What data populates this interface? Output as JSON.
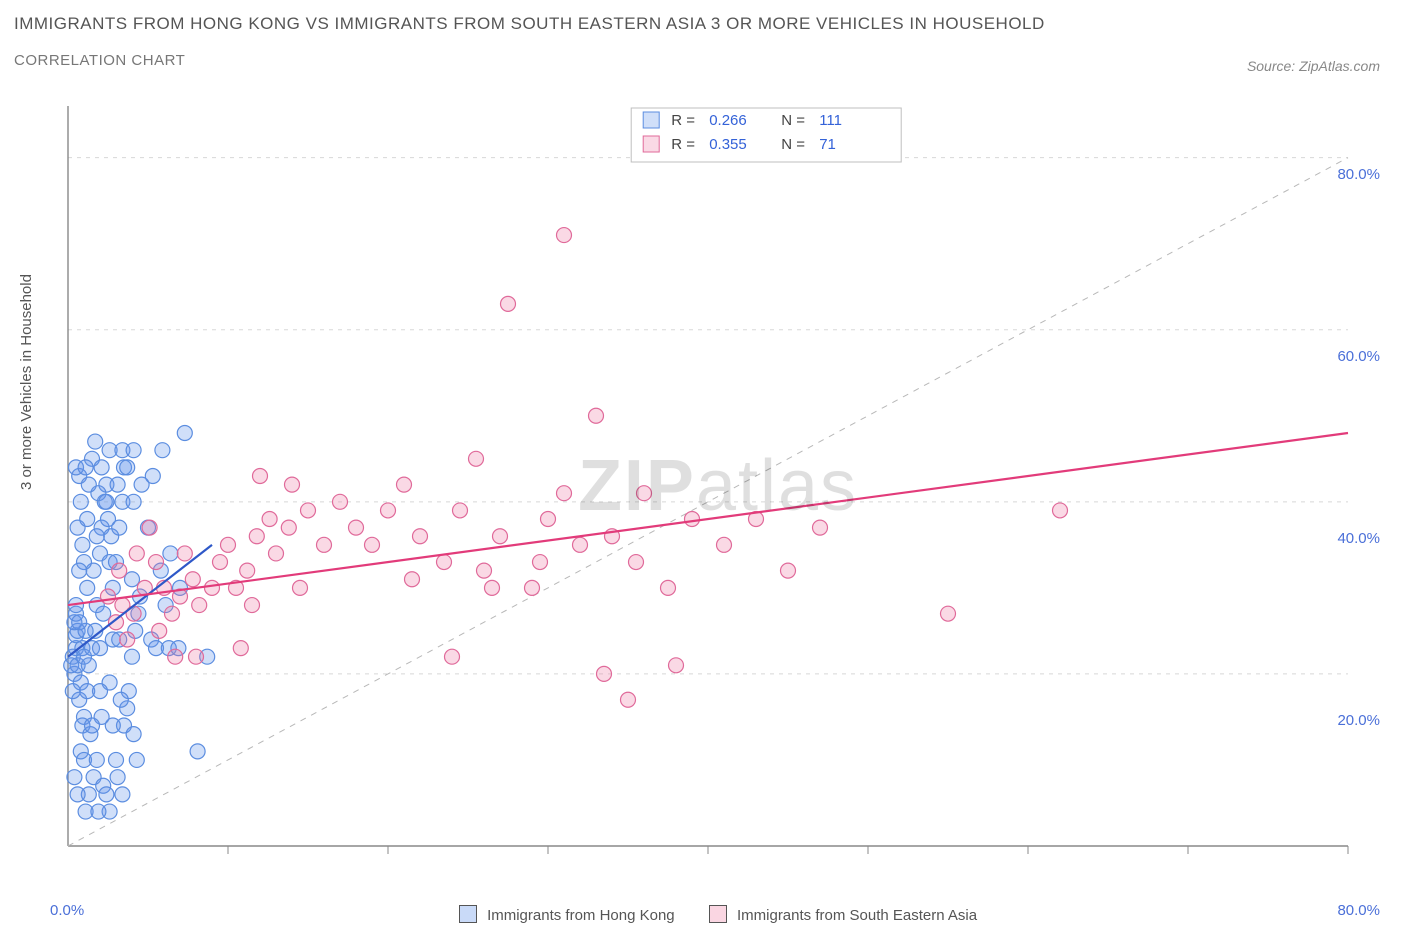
{
  "title": "IMMIGRANTS FROM HONG KONG VS IMMIGRANTS FROM SOUTH EASTERN ASIA 3 OR MORE VEHICLES IN HOUSEHOLD",
  "subtitle": "CORRELATION CHART",
  "source": "Source: ZipAtlas.com",
  "y_axis_label": "3 or more Vehicles in Household",
  "watermark_a": "ZIP",
  "watermark_b": "atlas",
  "chart": {
    "type": "scatter",
    "xlim": [
      0,
      80
    ],
    "ylim": [
      0,
      86
    ],
    "x_ticks": [
      0,
      80
    ],
    "x_tick_labels": [
      "0.0%",
      "80.0%"
    ],
    "y_ticks": [
      20,
      40,
      60,
      80
    ],
    "y_tick_labels": [
      "20.0%",
      "40.0%",
      "60.0%",
      "80.0%"
    ],
    "grid_color": "#d8d8d8",
    "axis_color": "#888888",
    "background_color": "#ffffff",
    "marker_radius": 7.5,
    "marker_stroke_width": 1.2,
    "diagonal_guide": {
      "color": "#b8b8b8",
      "dash": "6 6"
    },
    "series": [
      {
        "name": "Immigrants from Hong Kong",
        "fill": "rgba(99,148,236,0.30)",
        "stroke": "#5b8de0",
        "R": "0.266",
        "N": "111",
        "trend": {
          "x1": 0,
          "y1": 22,
          "x2": 9,
          "y2": 35,
          "color": "#2e58c8",
          "width": 2.2
        },
        "points": [
          [
            0.3,
            22
          ],
          [
            0.5,
            23
          ],
          [
            0.5,
            24.5
          ],
          [
            0.4,
            20
          ],
          [
            0.2,
            21
          ],
          [
            0.6,
            25
          ],
          [
            0.7,
            17
          ],
          [
            0.8,
            19
          ],
          [
            0.3,
            18
          ],
          [
            0.4,
            26
          ],
          [
            0.5,
            27
          ],
          [
            0.6,
            21
          ],
          [
            0.9,
            23
          ],
          [
            1.0,
            22
          ],
          [
            1.1,
            25
          ],
          [
            1.3,
            21
          ],
          [
            1.0,
            15
          ],
          [
            1.2,
            18
          ],
          [
            0.8,
            11
          ],
          [
            0.9,
            14
          ],
          [
            1.0,
            10
          ],
          [
            1.4,
            13
          ],
          [
            1.5,
            23
          ],
          [
            1.7,
            25
          ],
          [
            1.8,
            28
          ],
          [
            2.0,
            23
          ],
          [
            2.2,
            27
          ],
          [
            2.0,
            34
          ],
          [
            2.1,
            37
          ],
          [
            2.3,
            40
          ],
          [
            2.4,
            42
          ],
          [
            2.5,
            38
          ],
          [
            2.7,
            36
          ],
          [
            2.8,
            30
          ],
          [
            2.6,
            33
          ],
          [
            3.0,
            33
          ],
          [
            3.2,
            37
          ],
          [
            3.1,
            42
          ],
          [
            3.4,
            40
          ],
          [
            3.5,
            44
          ],
          [
            1.5,
            45
          ],
          [
            1.7,
            47
          ],
          [
            1.9,
            41
          ],
          [
            1.8,
            36
          ],
          [
            1.6,
            32
          ],
          [
            1.2,
            30
          ],
          [
            1.0,
            33
          ],
          [
            0.9,
            35
          ],
          [
            0.7,
            32
          ],
          [
            0.6,
            37
          ],
          [
            0.8,
            40
          ],
          [
            0.7,
            43
          ],
          [
            0.5,
            44
          ],
          [
            4.0,
            22
          ],
          [
            4.2,
            25
          ],
          [
            4.4,
            27
          ],
          [
            4.0,
            31
          ],
          [
            3.8,
            18
          ],
          [
            3.7,
            16
          ],
          [
            3.5,
            14
          ],
          [
            3.3,
            17
          ],
          [
            2.8,
            14
          ],
          [
            2.6,
            19
          ],
          [
            2.1,
            15
          ],
          [
            2.0,
            18
          ],
          [
            1.8,
            10
          ],
          [
            1.6,
            8
          ],
          [
            2.2,
            7
          ],
          [
            2.4,
            6
          ],
          [
            3.0,
            10
          ],
          [
            3.1,
            8
          ],
          [
            1.3,
            6
          ],
          [
            1.1,
            4
          ],
          [
            2.6,
            4
          ],
          [
            3.4,
            6
          ],
          [
            4.1,
            13
          ],
          [
            4.3,
            10
          ],
          [
            1.9,
            4
          ],
          [
            0.6,
            6
          ],
          [
            0.4,
            8
          ],
          [
            1.5,
            14
          ],
          [
            2.8,
            24
          ],
          [
            3.2,
            24
          ],
          [
            4.5,
            29
          ],
          [
            5.2,
            24
          ],
          [
            5.8,
            32
          ],
          [
            6.1,
            28
          ],
          [
            6.4,
            34
          ],
          [
            5.0,
            37
          ],
          [
            5.3,
            43
          ],
          [
            5.9,
            46
          ],
          [
            3.7,
            44
          ],
          [
            4.1,
            40
          ],
          [
            4.6,
            42
          ],
          [
            7.3,
            48
          ],
          [
            7.0,
            30
          ],
          [
            2.4,
            40
          ],
          [
            1.2,
            38
          ],
          [
            1.3,
            42
          ],
          [
            1.1,
            44
          ],
          [
            2.1,
            44
          ],
          [
            2.6,
            46
          ],
          [
            3.4,
            46
          ],
          [
            4.1,
            46
          ],
          [
            5.5,
            23
          ],
          [
            6.3,
            23
          ],
          [
            6.9,
            23
          ],
          [
            8.7,
            22
          ],
          [
            8.1,
            11
          ],
          [
            0.7,
            26
          ],
          [
            0.5,
            28
          ]
        ]
      },
      {
        "name": "Immigrants from South Eastern Asia",
        "fill": "rgba(238,120,160,0.28)",
        "stroke": "#e06a9a",
        "R": "0.355",
        "N": "71",
        "trend": {
          "x1": 0,
          "y1": 28,
          "x2": 80,
          "y2": 48,
          "color": "#e23b7a",
          "width": 2.2
        },
        "points": [
          [
            2.5,
            29
          ],
          [
            3.0,
            26
          ],
          [
            3.4,
            28
          ],
          [
            4.1,
            27
          ],
          [
            4.8,
            30
          ],
          [
            5.5,
            33
          ],
          [
            6.0,
            30
          ],
          [
            6.5,
            27
          ],
          [
            7.0,
            29
          ],
          [
            7.3,
            34
          ],
          [
            7.8,
            31
          ],
          [
            8.2,
            28
          ],
          [
            9.0,
            30
          ],
          [
            9.5,
            33
          ],
          [
            10.0,
            35
          ],
          [
            10.5,
            30
          ],
          [
            11.2,
            32
          ],
          [
            11.8,
            36
          ],
          [
            12.6,
            38
          ],
          [
            13.0,
            34
          ],
          [
            13.8,
            37
          ],
          [
            14.5,
            30
          ],
          [
            15.0,
            39
          ],
          [
            16.0,
            35
          ],
          [
            17.0,
            40
          ],
          [
            18.0,
            37
          ],
          [
            19.0,
            35
          ],
          [
            20.0,
            39
          ],
          [
            21.0,
            42
          ],
          [
            22.0,
            36
          ],
          [
            23.5,
            33
          ],
          [
            24.5,
            39
          ],
          [
            25.5,
            45
          ],
          [
            26.0,
            32
          ],
          [
            27.0,
            36
          ],
          [
            29.0,
            30
          ],
          [
            30.0,
            38
          ],
          [
            31.0,
            41
          ],
          [
            32.0,
            35
          ],
          [
            33.0,
            50
          ],
          [
            34.0,
            36
          ],
          [
            35.5,
            33
          ],
          [
            36.0,
            41
          ],
          [
            37.5,
            30
          ],
          [
            39.0,
            38
          ],
          [
            41.0,
            35
          ],
          [
            43.0,
            38
          ],
          [
            45.0,
            32
          ],
          [
            47.0,
            37
          ],
          [
            3.2,
            32
          ],
          [
            4.3,
            34
          ],
          [
            5.1,
            37
          ],
          [
            6.7,
            22
          ],
          [
            8.0,
            22
          ],
          [
            10.8,
            23
          ],
          [
            24.0,
            22
          ],
          [
            27.5,
            63
          ],
          [
            31.0,
            71
          ],
          [
            33.5,
            20
          ],
          [
            35.0,
            17
          ],
          [
            38.0,
            21
          ],
          [
            12.0,
            43
          ],
          [
            14.0,
            42
          ],
          [
            11.5,
            28
          ],
          [
            21.5,
            31
          ],
          [
            26.5,
            30
          ],
          [
            29.5,
            33
          ],
          [
            55.0,
            27
          ],
          [
            62.0,
            39
          ],
          [
            3.7,
            24
          ],
          [
            5.7,
            25
          ]
        ]
      }
    ],
    "bottom_legend": [
      {
        "swatch": "blue",
        "label": "Immigrants from Hong Kong"
      },
      {
        "swatch": "pink",
        "label": "Immigrants from South Eastern Asia"
      }
    ]
  }
}
